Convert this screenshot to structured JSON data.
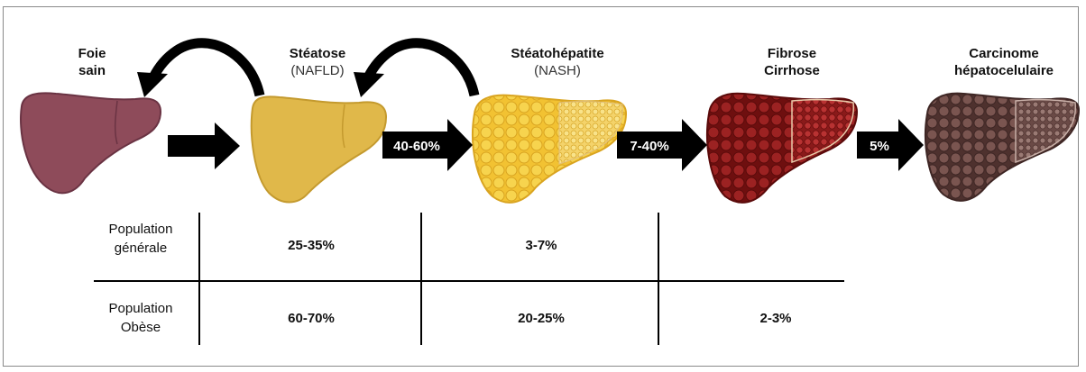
{
  "stages": [
    {
      "title": "Foie",
      "title2": "sain",
      "sub": ""
    },
    {
      "title": "Stéatose",
      "title2": "",
      "sub": "(NAFLD)"
    },
    {
      "title": "Stéatohépatite",
      "title2": "",
      "sub": "(NASH)"
    },
    {
      "title": "Fibrose",
      "title2": "Cirrhose",
      "sub": ""
    },
    {
      "title": "Carcinome",
      "title2": "hépatocelulaire",
      "sub": ""
    }
  ],
  "arrows": [
    "",
    "40-60%",
    "7-40%",
    "5%"
  ],
  "colors": {
    "healthy": "#8e4b5a",
    "steatosis": "#e0b84a",
    "nash": "#f0c030",
    "fibrosis": "#8a1a1a",
    "carcinoma": "#6e4a44",
    "arrow": "#000000"
  },
  "table": {
    "rows": [
      {
        "label1": "Population",
        "label2": "générale",
        "values": [
          "25-35%",
          "3-7%",
          ""
        ]
      },
      {
        "label1": "Population",
        "label2": "Obèse",
        "values": [
          "60-70%",
          "20-25%",
          "2-3%"
        ]
      }
    ]
  }
}
